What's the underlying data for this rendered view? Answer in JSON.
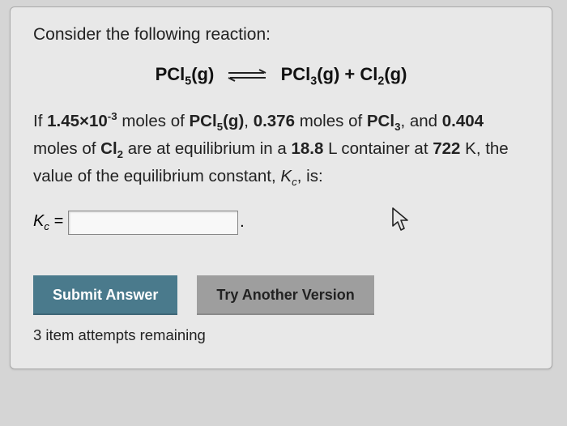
{
  "card": {
    "prompt": "Consider the following reaction:",
    "equation": {
      "lhs_html": "PCl<sub>5</sub>(g)",
      "rhs_html": "PCl<sub>3</sub>(g) + Cl<sub>2</sub>(g)",
      "arrow_stroke": "#222",
      "arrow_width": 2
    },
    "body_html": "If <b>1.45×10<sup>-3</sup></b> moles of <b>PCl<sub>5</sub>(g)</b>, <b>0.376</b> moles of <b>PCl<sub>3</sub></b>, and <b>0.404</b> moles of <b>Cl<sub>2</sub></b> are at equilibrium in a <b>18.8</b> L container at <b>722</b> K, the value of the equilibrium constant, <i>K<sub>c</sub></i>, is:",
    "answer": {
      "label_html": "<i>K</i><sub>c</sub> =",
      "input_value": "",
      "input_placeholder": "",
      "period": "."
    },
    "buttons": {
      "submit_label": "Submit Answer",
      "try_label": "Try Another Version",
      "submit_bg": "#4a7a8c",
      "try_bg": "#9e9e9e"
    },
    "attempts_text": "3 item attempts remaining"
  },
  "colors": {
    "page_bg": "#d5d5d5",
    "card_bg": "#e8e8e8",
    "text": "#222222",
    "input_border": "#888888"
  }
}
